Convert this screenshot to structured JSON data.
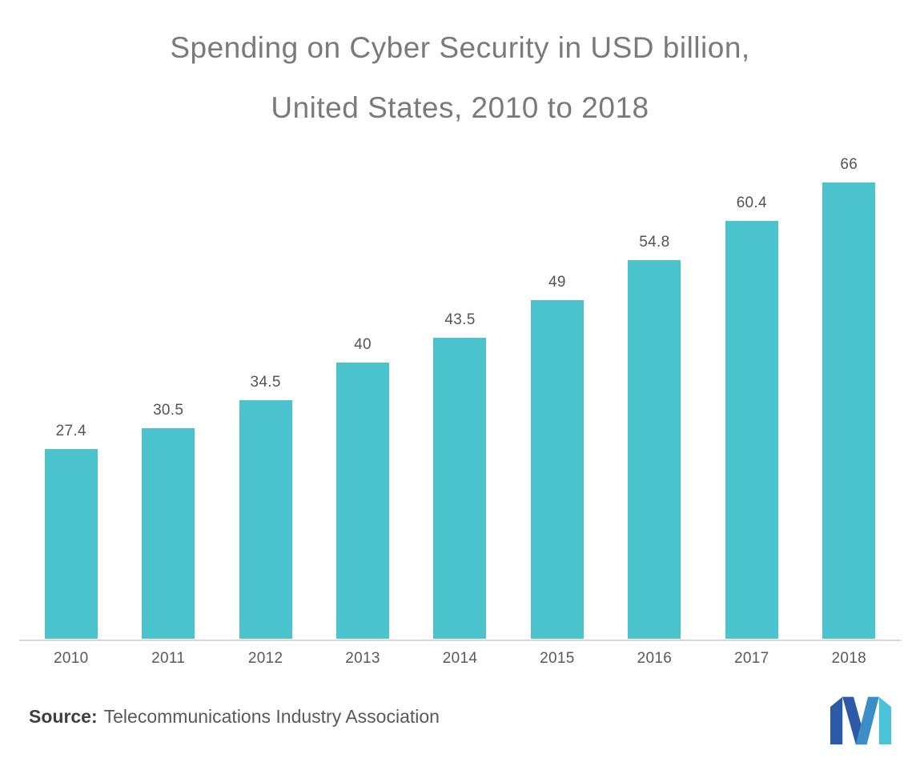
{
  "title": {
    "line1": "Spending on Cyber Security in USD billion,",
    "line2": "United States, 2010 to 2018"
  },
  "chart_data": {
    "type": "bar",
    "title": "Spending on Cyber Security in USD billion, United States, 2010 to 2018",
    "categories": [
      "2010",
      "2011",
      "2012",
      "2013",
      "2014",
      "2015",
      "2016",
      "2017",
      "2018"
    ],
    "values": [
      27.4,
      30.5,
      34.5,
      40,
      43.5,
      49,
      54.8,
      60.4,
      66
    ],
    "xlabel": "",
    "ylabel": "",
    "ylim": [
      0,
      70
    ],
    "grid": false,
    "legend": false,
    "data_labels": true,
    "bar_color": "#4bc3cd",
    "value_label_color": "#545454",
    "tick_label_color": "#595959",
    "title_color": "#7a7a7a",
    "axis_line_color": "#d8d8d8"
  },
  "footer": {
    "source_label": "Source:",
    "source_text": "Telecommunications Industry Association"
  },
  "logo": {
    "icon": "m-logo",
    "colors": {
      "c1": "#2c5aa9",
      "c2": "#3d8ec6",
      "c3": "#4ac2d8"
    }
  }
}
